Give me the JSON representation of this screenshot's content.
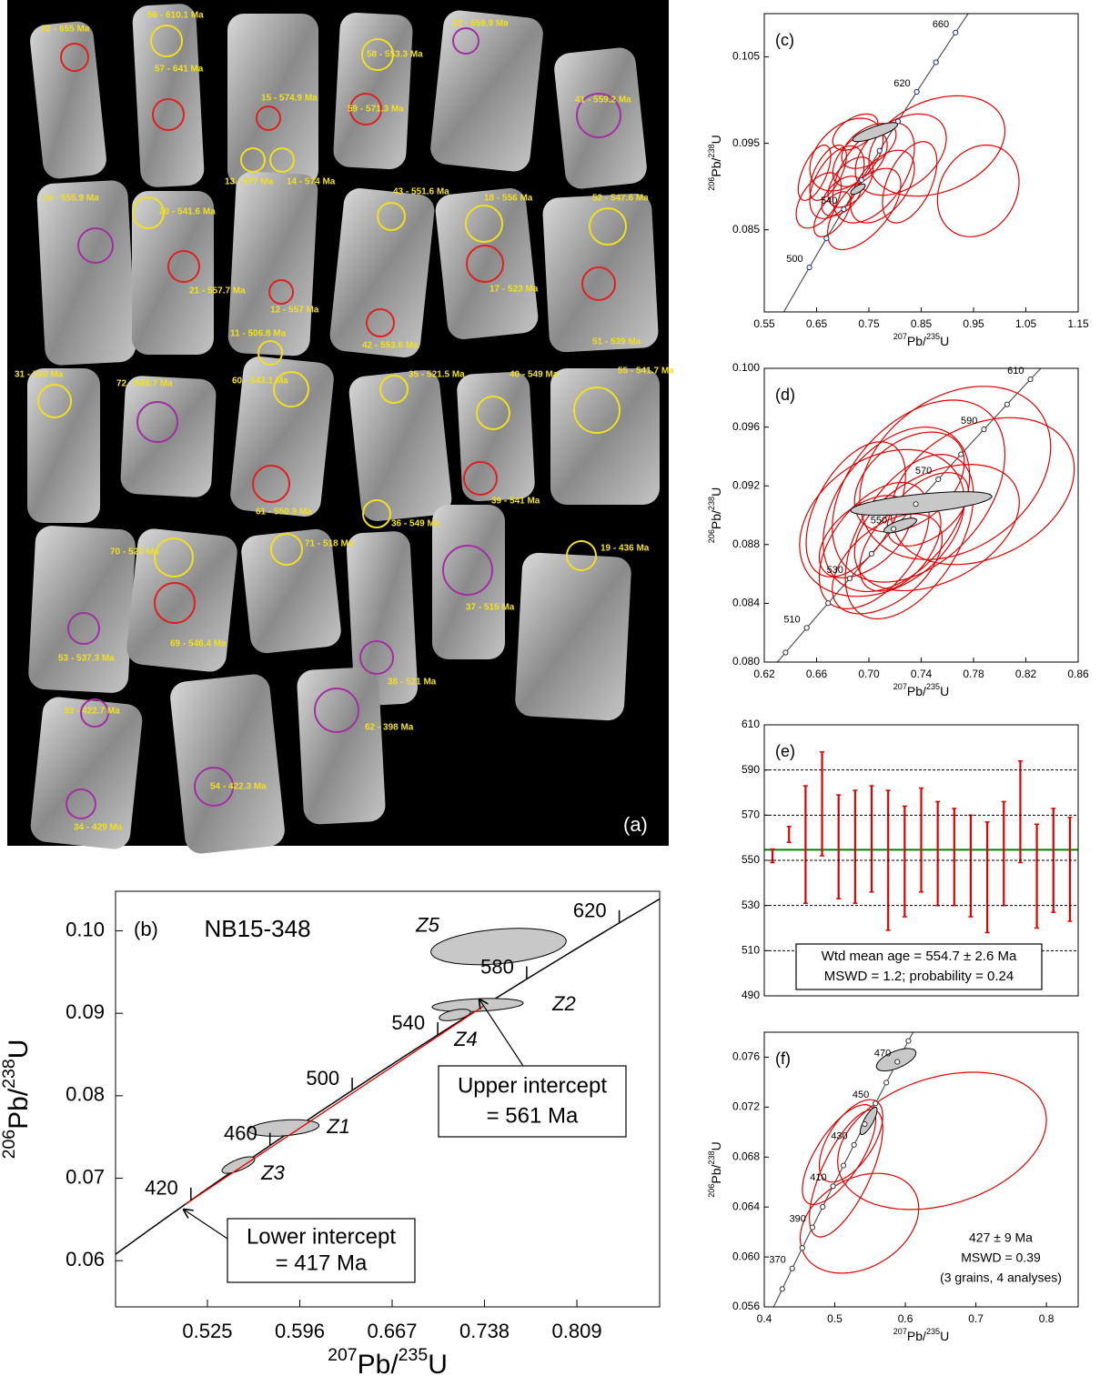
{
  "cl_image": {
    "panel_label": "(a)",
    "spot_labels": [
      "32 - 655 Ma",
      "56 - 610.1 Ma",
      "57 - 641 Ma",
      "15 - 574.9 Ma",
      "13 - 577 Ma",
      "14 - 574 Ma",
      "58 - 553.3 Ma",
      "59 - 571.3 Ma",
      "22 - 559.9 Ma",
      "41 - 559.2 Ma",
      "16 - 555.9 Ma",
      "20 - 541.6 Ma",
      "21 - 557.7 Ma",
      "12 - 557 Ma",
      "11 - 506.8 Ma",
      "43 - 551.6 Ma",
      "42 - 553.6 Ma",
      "18 - 556 Ma",
      "17 - 523 Ma",
      "52 - 547.6 Ma",
      "51 - 539 Ma",
      "31 - 550 Ma",
      "72 - 549.7 Ma",
      "60 - 543.1 Ma",
      "61 - 550.3 Ma",
      "35 - 521.5 Ma",
      "36 - 549 Ma",
      "40 - 549 Ma",
      "39 - 541 Ma",
      "55 - 541.7 Ma",
      "70 - 523 Ma",
      "69 - 546.4 Ma",
      "71 - 518 Ma",
      "37 - 515 Ma",
      "19 - 436 Ma",
      "53 - 537.3 Ma",
      "38 - 521 Ma",
      "33 - 422.7 Ma",
      "62 - 398 Ma",
      "54 - 422.3 Ma",
      "34 - 429 Ma"
    ]
  },
  "chart_data": [
    {
      "type": "concordia",
      "panel_label": "(b)",
      "title": "NB15-348",
      "x_label": "207Pb/235U",
      "y_label": "206Pb/238U",
      "xlim": [
        0.4544,
        0.8726
      ],
      "ylim": [
        0.0544,
        0.1048
      ],
      "xticks": [
        0.525,
        0.596,
        0.667,
        0.738,
        0.809
      ],
      "yticks": [
        {
          "value": 0.1,
          "label": "0.10"
        },
        0.09,
        0.08,
        0.07,
        0.06
      ],
      "concordia_ages": [
        420,
        460,
        500,
        540,
        580,
        620
      ],
      "ellipses": {
        "names": [
          "Z5",
          "Z2",
          "Z4",
          "Z1",
          "Z3"
        ],
        "x": [
          0.7488,
          0.7327,
          0.7152,
          0.5838,
          0.5488
        ],
        "y": [
          0.0981,
          0.091,
          0.0898,
          0.0761,
          0.0716
        ],
        "x_err": [
          0.052,
          0.035,
          0.012,
          0.027,
          0.0126
        ],
        "y_err": [
          0.0022,
          0.0008,
          0.0007,
          0.001,
          0.001
        ],
        "rho": [
          0.3,
          0.3,
          0.5,
          0.3,
          0.7
        ],
        "fill": "#c8c8c8",
        "color": "#000000"
      },
      "discordia_color": "#e00000",
      "upper_intercept": {
        "label": "Upper intercept",
        "value_label": "= 561 Ma",
        "age": 561
      },
      "lower_intercept": {
        "label": "Lower intercept",
        "value_label": "= 417 Ma",
        "age": 417
      }
    },
    {
      "type": "concordia",
      "panel_label": "(c)",
      "x_label": "207Pb/235U",
      "y_label": "206Pb/238U",
      "xlim": [
        0.55,
        1.15
      ],
      "ylim": [
        0.0755,
        0.11
      ],
      "xticks": [
        0.55,
        0.65,
        0.75,
        0.85,
        0.95,
        1.05,
        1.15
      ],
      "yticks": [
        0.085,
        0.095,
        0.105
      ],
      "concordia_ages": [
        500,
        520,
        540,
        560,
        580,
        600,
        620,
        640,
        660
      ],
      "concordia_labels": [
        500,
        null,
        540,
        null,
        null,
        null,
        620,
        null,
        660
      ],
      "marker_color": "#1a2a8a",
      "ellipses": {
        "x": [
          0.88,
          0.959,
          0.811,
          0.759,
          0.707,
          0.689,
          0.741,
          0.654,
          0.672,
          0.715,
          0.733,
          0.698,
          0.776,
          0.724,
          0.828,
          0.68,
          0.75,
          0.646
        ],
        "y": [
          0.0947,
          0.0895,
          0.0937,
          0.0916,
          0.0937,
          0.0905,
          0.0874,
          0.0884,
          0.0916,
          0.0905,
          0.0932,
          0.0889,
          0.09,
          0.0963,
          0.0905,
          0.0868,
          0.0947,
          0.0916
        ],
        "x_err": [
          0.13,
          0.078,
          0.087,
          0.078,
          0.07,
          0.052,
          0.07,
          0.043,
          0.035,
          0.043,
          0.052,
          0.038,
          0.061,
          0.043,
          0.052,
          0.035,
          0.052,
          0.031
        ],
        "y_err": [
          0.0058,
          0.0053,
          0.0047,
          0.0058,
          0.0042,
          0.0042,
          0.0047,
          0.0032,
          0.0032,
          0.0029,
          0.0032,
          0.0023,
          0.0042,
          0.0021,
          0.0047,
          0.0026,
          0.0026,
          0.0032
        ],
        "rho": [
          0.3,
          0.2,
          0.4,
          0.5,
          0.4,
          0.5,
          0.6,
          0.5,
          0.6,
          0.5,
          0.5,
          0.5,
          0.5,
          0.5,
          0.5,
          0.6,
          0.5,
          0.6
        ],
        "color": "#e00000"
      },
      "mean_ellipses": {
        "x": [
          0.762,
          0.729
        ],
        "y": [
          0.0963,
          0.0897
        ],
        "x_err": [
          0.043,
          0.014
        ],
        "y_err": [
          0.0011,
          0.0006
        ],
        "rho": [
          0.8,
          0.7
        ],
        "fill": "#c8c8c8",
        "color": "#000000"
      }
    },
    {
      "type": "concordia",
      "panel_label": "(d)",
      "x_label": "207Pb/235U",
      "y_label": "206Pb/238U",
      "xlim": [
        0.62,
        0.86
      ],
      "ylim": [
        0.08,
        0.1
      ],
      "xticks": [
        0.62,
        0.66,
        {
          "value": 0.7,
          "label": "0.70"
        },
        0.74,
        0.78,
        0.82,
        0.86
      ],
      "yticks": [
        {
          "value": 0.08,
          "label": "0.080"
        },
        0.084,
        0.088,
        0.092,
        0.096,
        {
          "value": 0.1,
          "label": "0.100"
        }
      ],
      "concordia_ages": [
        500,
        510,
        520,
        530,
        540,
        550,
        560,
        570,
        580,
        590,
        600,
        610
      ],
      "concordia_labels": [
        null,
        510,
        null,
        530,
        null,
        550,
        null,
        570,
        null,
        590,
        null,
        610
      ],
      "marker_color": "#333333",
      "ellipses": {
        "x": [
          0.766,
          0.738,
          0.721,
          0.71,
          0.731,
          0.704,
          0.752,
          0.787,
          0.69,
          0.731,
          0.714,
          0.697,
          0.745,
          0.724
        ],
        "y": [
          0.09288,
          0.09164,
          0.0904,
          0.08947,
          0.08854,
          0.08793,
          0.08916,
          0.09164,
          0.0904,
          0.09226,
          0.08669,
          0.08854,
          0.0904,
          0.08793
        ],
        "x_err": [
          0.073,
          0.066,
          0.056,
          0.063,
          0.049,
          0.042,
          0.063,
          0.07,
          0.038,
          0.042,
          0.042,
          0.035,
          0.031,
          0.031
        ],
        "y_err": [
          0.0059,
          0.0062,
          0.0056,
          0.005,
          0.0056,
          0.0043,
          0.0043,
          0.005,
          0.0046,
          0.0034,
          0.0034,
          0.0028,
          0.0025,
          0.0031
        ],
        "rho": [
          0.3,
          0.4,
          0.4,
          0.3,
          0.5,
          0.5,
          0.4,
          0.3,
          0.5,
          0.4,
          0.5,
          0.5,
          0.5,
          0.5
        ],
        "color": "#e00000"
      },
      "mean_ellipses": {
        "x": [
          0.74,
          0.724
        ],
        "y": [
          0.0908,
          0.0893
        ],
        "x_err": [
          0.054,
          0.0125
        ],
        "y_err": [
          0.0008,
          0.0005
        ],
        "rho": [
          0.6,
          0.7
        ],
        "fill": "#c8c8c8",
        "color": "#000000"
      }
    },
    {
      "type": "errorbar",
      "panel_label": "(e)",
      "ylim": [
        490,
        610
      ],
      "yticks": [
        490,
        510,
        530,
        550,
        570,
        590,
        610
      ],
      "grid": true,
      "values": [
        552,
        561.5,
        557,
        575,
        556,
        556,
        559.5,
        550,
        549.5,
        559,
        553,
        551.5,
        547.5,
        542.5,
        553,
        571.5,
        543,
        550,
        546
      ],
      "errors": [
        3,
        3.5,
        26,
        23,
        23,
        25,
        23.5,
        31,
        24.5,
        23,
        23,
        21.5,
        22.5,
        24.5,
        23,
        22.5,
        23,
        23,
        23
      ],
      "color": "#e00000",
      "mean": 554.7,
      "mean_color": "#008000",
      "annotations": [
        "Wtd mean age = 554.7 ± 2.6 Ma",
        "MSWD = 1.2; probability = 0.24"
      ]
    },
    {
      "type": "concordia",
      "panel_label": "(f)",
      "x_label": "207Pb/235U",
      "y_label": "206Pb/238U",
      "xlim": [
        0.4,
        0.845
      ],
      "ylim": [
        0.056,
        0.078
      ],
      "xticks": [
        0.4,
        0.5,
        0.6,
        0.7,
        0.8
      ],
      "yticks": [
        0.056,
        {
          "value": 0.06,
          "label": "0.060"
        },
        0.064,
        0.068,
        0.072,
        0.076
      ],
      "concordia_ages": [
        360,
        370,
        380,
        390,
        400,
        410,
        420,
        430,
        440,
        450,
        460,
        470,
        480
      ],
      "concordia_labels": [
        null,
        370,
        null,
        390,
        null,
        410,
        null,
        430,
        null,
        450,
        null,
        470,
        null
      ],
      "marker_color": "#333333",
      "ellipses": {
        "x": [
          0.652,
          0.535,
          0.506,
          0.516,
          0.523
        ],
        "y": [
          0.0693,
          0.0627,
          0.0682,
          0.0667,
          0.0693
        ],
        "x_err": [
          0.148,
          0.084,
          0.052,
          0.052,
          0.045
        ],
        "y_err": [
          0.0055,
          0.004,
          0.004,
          0.0051,
          0.0033
        ],
        "rho": [
          0.3,
          0.3,
          0.7,
          0.7,
          0.6
        ],
        "color": "#e00000"
      },
      "mean_ellipses": {
        "x": [
          0.587,
          0.548
        ],
        "y": [
          0.0758,
          0.0709
        ],
        "x_err": [
          0.028,
          0.012
        ],
        "y_err": [
          0.0009,
          0.0011
        ],
        "rho": [
          0.6,
          0.8
        ],
        "fill": "#c8c8c8",
        "color": "#000000"
      },
      "annotations": [
        "427 ± 9 Ma",
        "MSWD = 0.39",
        "(3 grains, 4 analyses)"
      ]
    }
  ]
}
